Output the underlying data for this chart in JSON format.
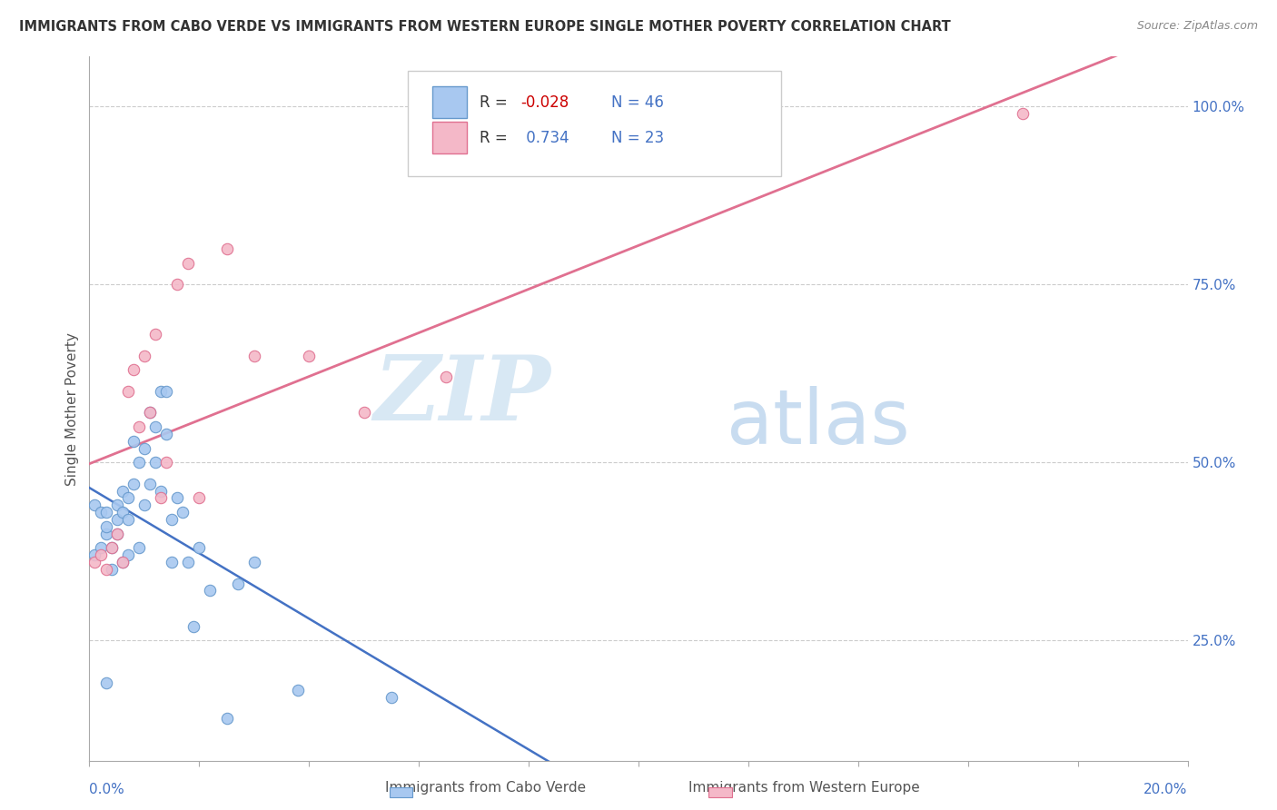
{
  "title": "IMMIGRANTS FROM CABO VERDE VS IMMIGRANTS FROM WESTERN EUROPE SINGLE MOTHER POVERTY CORRELATION CHART",
  "source": "Source: ZipAtlas.com",
  "ylabel": "Single Mother Poverty",
  "xmin": 0.0,
  "xmax": 0.2,
  "ymin": 0.08,
  "ymax": 1.07,
  "right_yticks": [
    0.25,
    0.5,
    0.75,
    1.0
  ],
  "right_yticklabels": [
    "25.0%",
    "50.0%",
    "75.0%",
    "100.0%"
  ],
  "cabo_verde_color": "#A8C8F0",
  "cabo_verde_edge": "#6699CC",
  "western_europe_color": "#F4B8C8",
  "western_europe_edge": "#E07090",
  "cabo_verde_line_color": "#4472C4",
  "western_europe_line_color": "#E07090",
  "R_cabo": -0.028,
  "N_cabo": 46,
  "R_west": 0.734,
  "N_west": 23,
  "watermark_zip": "ZIP",
  "watermark_atlas": "atlas",
  "cabo_verde_x": [
    0.001,
    0.001,
    0.002,
    0.002,
    0.003,
    0.003,
    0.003,
    0.004,
    0.004,
    0.005,
    0.005,
    0.005,
    0.006,
    0.006,
    0.006,
    0.007,
    0.007,
    0.007,
    0.008,
    0.008,
    0.009,
    0.009,
    0.01,
    0.01,
    0.011,
    0.011,
    0.012,
    0.012,
    0.013,
    0.013,
    0.014,
    0.014,
    0.015,
    0.015,
    0.016,
    0.017,
    0.018,
    0.019,
    0.02,
    0.022,
    0.025,
    0.027,
    0.03,
    0.038,
    0.055,
    0.003
  ],
  "cabo_verde_y": [
    0.37,
    0.44,
    0.38,
    0.43,
    0.4,
    0.41,
    0.43,
    0.35,
    0.38,
    0.4,
    0.42,
    0.44,
    0.36,
    0.43,
    0.46,
    0.37,
    0.42,
    0.45,
    0.47,
    0.53,
    0.38,
    0.5,
    0.44,
    0.52,
    0.47,
    0.57,
    0.5,
    0.55,
    0.46,
    0.6,
    0.54,
    0.6,
    0.36,
    0.42,
    0.45,
    0.43,
    0.36,
    0.27,
    0.38,
    0.32,
    0.14,
    0.33,
    0.36,
    0.18,
    0.17,
    0.19
  ],
  "western_europe_x": [
    0.001,
    0.002,
    0.003,
    0.004,
    0.005,
    0.006,
    0.007,
    0.008,
    0.009,
    0.01,
    0.011,
    0.012,
    0.013,
    0.014,
    0.016,
    0.018,
    0.02,
    0.025,
    0.03,
    0.04,
    0.05,
    0.065,
    0.17
  ],
  "western_europe_y": [
    0.36,
    0.37,
    0.35,
    0.38,
    0.4,
    0.36,
    0.6,
    0.63,
    0.55,
    0.65,
    0.57,
    0.68,
    0.45,
    0.5,
    0.75,
    0.78,
    0.45,
    0.8,
    0.65,
    0.65,
    0.57,
    0.62,
    0.99
  ]
}
